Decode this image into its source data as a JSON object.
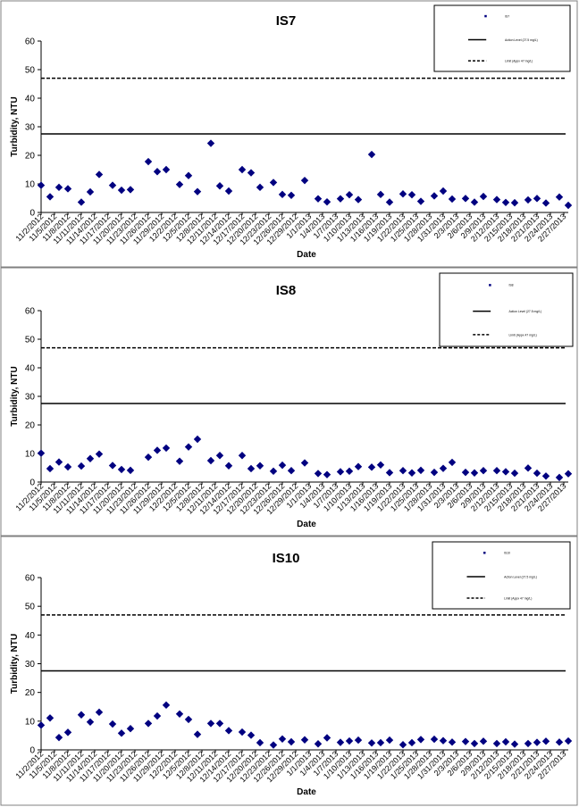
{
  "chart_data": [
    {
      "type": "scatter",
      "title": "IS7",
      "xlabel": "Date",
      "ylabel": "Turbidity, NTU",
      "ylim": [
        0,
        60
      ],
      "yticks": [
        "0",
        "10",
        "20",
        "30",
        "40",
        "50",
        "60"
      ],
      "xticks": [
        "11/2/2012",
        "11/5/2012",
        "11/8/2012",
        "11/11/2012",
        "11/14/2012",
        "11/17/2012",
        "11/20/2012",
        "11/23/2012",
        "11/26/2012",
        "11/29/2012",
        "12/2/2012",
        "12/5/2012",
        "12/8/2012",
        "12/11/2012",
        "12/14/2012",
        "12/17/2012",
        "12/20/2012",
        "12/23/2012",
        "12/26/2012",
        "12/29/2012",
        "1/1/2013",
        "1/4/2013",
        "1/7/2013",
        "1/10/2013",
        "1/13/2013",
        "1/16/2013",
        "1/19/2013",
        "1/22/2013",
        "1/25/2013",
        "1/28/2013",
        "1/31/2013",
        "2/3/2013",
        "2/6/2013",
        "2/9/2013",
        "2/12/2013",
        "2/15/2013",
        "2/18/2013",
        "2/21/2013",
        "2/24/2013",
        "2/27/2013"
      ],
      "reference_lines": [
        27.5,
        47
      ],
      "legend_placement": "top-right",
      "legend_entries": [
        "IS7",
        "Action Level (27.5 mg/L)",
        "Limit (Appx 47 mg/L)"
      ],
      "grid": false,
      "points": [
        {
          "x": "11/2/2012",
          "y": 9.5
        },
        {
          "x": "11/4/2012",
          "y": 5.5
        },
        {
          "x": "11/6/2012",
          "y": 8.8
        },
        {
          "x": "11/8/2012",
          "y": 8.3
        },
        {
          "x": "11/11/2012",
          "y": 3.6
        },
        {
          "x": "11/13/2012",
          "y": 7.2
        },
        {
          "x": "11/15/2012",
          "y": 13.3
        },
        {
          "x": "11/18/2012",
          "y": 9.5
        },
        {
          "x": "11/20/2012",
          "y": 7.8
        },
        {
          "x": "11/22/2012",
          "y": 8.0
        },
        {
          "x": "11/26/2012",
          "y": 17.8
        },
        {
          "x": "11/28/2012",
          "y": 14.3
        },
        {
          "x": "11/30/2012",
          "y": 15.0
        },
        {
          "x": "12/3/2012",
          "y": 9.8
        },
        {
          "x": "12/5/2012",
          "y": 12.9
        },
        {
          "x": "12/7/2012",
          "y": 7.3
        },
        {
          "x": "12/10/2012",
          "y": 24.2
        },
        {
          "x": "12/12/2012",
          "y": 9.3
        },
        {
          "x": "12/14/2012",
          "y": 7.5
        },
        {
          "x": "12/17/2012",
          "y": 15.0
        },
        {
          "x": "12/19/2012",
          "y": 13.9
        },
        {
          "x": "12/21/2012",
          "y": 8.8
        },
        {
          "x": "12/24/2012",
          "y": 10.5
        },
        {
          "x": "12/26/2012",
          "y": 6.3
        },
        {
          "x": "12/28/2012",
          "y": 6.0
        },
        {
          "x": "12/31/2012",
          "y": 11.2
        },
        {
          "x": "1/3/2013",
          "y": 4.8
        },
        {
          "x": "1/5/2013",
          "y": 3.7
        },
        {
          "x": "1/8/2013",
          "y": 4.8
        },
        {
          "x": "1/10/2013",
          "y": 6.2
        },
        {
          "x": "1/12/2013",
          "y": 4.5
        },
        {
          "x": "1/15/2013",
          "y": 20.3
        },
        {
          "x": "1/17/2013",
          "y": 6.3
        },
        {
          "x": "1/19/2013",
          "y": 3.6
        },
        {
          "x": "1/22/2013",
          "y": 6.5
        },
        {
          "x": "1/24/2013",
          "y": 6.2
        },
        {
          "x": "1/26/2013",
          "y": 3.9
        },
        {
          "x": "1/29/2013",
          "y": 5.8
        },
        {
          "x": "1/31/2013",
          "y": 7.5
        },
        {
          "x": "2/2/2013",
          "y": 4.7
        },
        {
          "x": "2/5/2013",
          "y": 4.9
        },
        {
          "x": "2/7/2013",
          "y": 3.6
        },
        {
          "x": "2/9/2013",
          "y": 5.6
        },
        {
          "x": "2/12/2013",
          "y": 4.5
        },
        {
          "x": "2/14/2013",
          "y": 3.5
        },
        {
          "x": "2/16/2013",
          "y": 3.4
        },
        {
          "x": "2/19/2013",
          "y": 4.4
        },
        {
          "x": "2/21/2013",
          "y": 4.9
        },
        {
          "x": "2/23/2013",
          "y": 3.3
        },
        {
          "x": "2/26/2013",
          "y": 5.4
        },
        {
          "x": "2/28/2013",
          "y": 2.5
        }
      ]
    },
    {
      "type": "scatter",
      "title": "IS8",
      "xlabel": "Date",
      "ylabel": "Turbidity, NTU",
      "ylim": [
        0,
        60
      ],
      "yticks": [
        "0",
        "10",
        "20",
        "30",
        "40",
        "50",
        "60"
      ],
      "xticks": [
        "11/2/2012",
        "11/5/2012",
        "11/8/2012",
        "11/11/2012",
        "11/14/2012",
        "11/17/2012",
        "11/20/2012",
        "11/23/2012",
        "11/26/2012",
        "11/29/2012",
        "12/2/2012",
        "12/5/2012",
        "12/8/2012",
        "12/11/2012",
        "12/14/2012",
        "12/17/2012",
        "12/20/2012",
        "12/23/2012",
        "12/26/2012",
        "12/29/2012",
        "1/1/2013",
        "1/4/2013",
        "1/7/2013",
        "1/10/2013",
        "1/13/2013",
        "1/16/2013",
        "1/19/2013",
        "1/22/2013",
        "1/25/2013",
        "1/28/2013",
        "1/31/2013",
        "2/3/2013",
        "2/6/2013",
        "2/9/2013",
        "2/12/2013",
        "2/15/2013",
        "2/18/2013",
        "2/21/2013",
        "2/24/2013",
        "2/27/2013"
      ],
      "reference_lines": [
        27.5,
        47
      ],
      "legend_placement": "top-right",
      "legend_entries": [
        "IS8",
        "Action Level (27.5 mg/L)",
        "Limit (Appx 47 mg/L)"
      ],
      "grid": false,
      "points": [
        {
          "x": "11/2/2012",
          "y": 10.1
        },
        {
          "x": "11/4/2012",
          "y": 4.7
        },
        {
          "x": "11/6/2012",
          "y": 7.0
        },
        {
          "x": "11/8/2012",
          "y": 5.3
        },
        {
          "x": "11/11/2012",
          "y": 5.6
        },
        {
          "x": "11/13/2012",
          "y": 8.2
        },
        {
          "x": "11/15/2012",
          "y": 9.8
        },
        {
          "x": "11/18/2012",
          "y": 5.8
        },
        {
          "x": "11/20/2012",
          "y": 4.4
        },
        {
          "x": "11/22/2012",
          "y": 4.1
        },
        {
          "x": "11/26/2012",
          "y": 8.7
        },
        {
          "x": "11/28/2012",
          "y": 11.1
        },
        {
          "x": "11/30/2012",
          "y": 11.9
        },
        {
          "x": "12/3/2012",
          "y": 7.3
        },
        {
          "x": "12/5/2012",
          "y": 12.3
        },
        {
          "x": "12/7/2012",
          "y": 15.0
        },
        {
          "x": "12/10/2012",
          "y": 7.5
        },
        {
          "x": "12/12/2012",
          "y": 9.3
        },
        {
          "x": "12/14/2012",
          "y": 5.7
        },
        {
          "x": "12/17/2012",
          "y": 9.3
        },
        {
          "x": "12/19/2012",
          "y": 4.7
        },
        {
          "x": "12/21/2012",
          "y": 5.7
        },
        {
          "x": "12/24/2012",
          "y": 3.8
        },
        {
          "x": "12/26/2012",
          "y": 5.9
        },
        {
          "x": "12/28/2012",
          "y": 4.0
        },
        {
          "x": "12/31/2012",
          "y": 6.7
        },
        {
          "x": "1/3/2013",
          "y": 3.0
        },
        {
          "x": "1/5/2013",
          "y": 2.6
        },
        {
          "x": "1/8/2013",
          "y": 3.6
        },
        {
          "x": "1/10/2013",
          "y": 3.8
        },
        {
          "x": "1/12/2013",
          "y": 5.4
        },
        {
          "x": "1/15/2013",
          "y": 5.2
        },
        {
          "x": "1/17/2013",
          "y": 6.0
        },
        {
          "x": "1/19/2013",
          "y": 3.3
        },
        {
          "x": "1/22/2013",
          "y": 4.0
        },
        {
          "x": "1/24/2013",
          "y": 3.2
        },
        {
          "x": "1/26/2013",
          "y": 4.1
        },
        {
          "x": "1/29/2013",
          "y": 3.4
        },
        {
          "x": "1/31/2013",
          "y": 4.8
        },
        {
          "x": "2/2/2013",
          "y": 6.9
        },
        {
          "x": "2/5/2013",
          "y": 3.4
        },
        {
          "x": "2/7/2013",
          "y": 3.2
        },
        {
          "x": "2/9/2013",
          "y": 4.0
        },
        {
          "x": "2/12/2013",
          "y": 4.0
        },
        {
          "x": "2/14/2013",
          "y": 3.6
        },
        {
          "x": "2/16/2013",
          "y": 3.1
        },
        {
          "x": "2/19/2013",
          "y": 4.9
        },
        {
          "x": "2/21/2013",
          "y": 3.1
        },
        {
          "x": "2/23/2013",
          "y": 2.1
        },
        {
          "x": "2/26/2013",
          "y": 1.6
        },
        {
          "x": "2/28/2013",
          "y": 2.9
        }
      ]
    },
    {
      "type": "scatter",
      "title": "IS10",
      "xlabel": "Date",
      "ylabel": "Turbidity, NTU",
      "ylim": [
        0,
        60
      ],
      "yticks": [
        "0",
        "10",
        "20",
        "30",
        "40",
        "50",
        "60"
      ],
      "xticks": [
        "11/2/2012",
        "11/5/2012",
        "11/8/2012",
        "11/11/2012",
        "11/14/2012",
        "11/17/2012",
        "11/20/2012",
        "11/23/2012",
        "11/26/2012",
        "11/29/2012",
        "12/2/2012",
        "12/5/2012",
        "12/8/2012",
        "12/11/2012",
        "12/14/2012",
        "12/17/2012",
        "12/20/2012",
        "12/23/2012",
        "12/26/2012",
        "12/29/2012",
        "1/1/2013",
        "1/4/2013",
        "1/7/2013",
        "1/10/2013",
        "1/13/2013",
        "1/16/2013",
        "1/19/2013",
        "1/22/2013",
        "1/25/2013",
        "1/28/2013",
        "1/31/2013",
        "2/3/2013",
        "2/6/2013",
        "2/9/2013",
        "2/12/2013",
        "2/15/2013",
        "2/18/2013",
        "2/21/2013",
        "2/24/2013",
        "2/27/2013"
      ],
      "reference_lines": [
        27.5,
        47
      ],
      "legend_placement": "top-right",
      "legend_entries": [
        "IS10",
        "Action Level (27.5 mg/L)",
        "Limit (Appx 47 mg/L)"
      ],
      "grid": false,
      "points": [
        {
          "x": "11/2/2012",
          "y": 8.6
        },
        {
          "x": "11/4/2012",
          "y": 11.1
        },
        {
          "x": "11/6/2012",
          "y": 4.3
        },
        {
          "x": "11/8/2012",
          "y": 6.1
        },
        {
          "x": "11/11/2012",
          "y": 12.2
        },
        {
          "x": "11/13/2012",
          "y": 9.7
        },
        {
          "x": "11/15/2012",
          "y": 13.1
        },
        {
          "x": "11/18/2012",
          "y": 9.0
        },
        {
          "x": "11/20/2012",
          "y": 5.8
        },
        {
          "x": "11/22/2012",
          "y": 7.4
        },
        {
          "x": "11/26/2012",
          "y": 9.2
        },
        {
          "x": "11/28/2012",
          "y": 11.8
        },
        {
          "x": "11/30/2012",
          "y": 15.6
        },
        {
          "x": "12/3/2012",
          "y": 12.5
        },
        {
          "x": "12/5/2012",
          "y": 10.6
        },
        {
          "x": "12/7/2012",
          "y": 5.4
        },
        {
          "x": "12/10/2012",
          "y": 9.2
        },
        {
          "x": "12/12/2012",
          "y": 9.2
        },
        {
          "x": "12/14/2012",
          "y": 6.7
        },
        {
          "x": "12/17/2012",
          "y": 6.2
        },
        {
          "x": "12/19/2012",
          "y": 5.1
        },
        {
          "x": "12/21/2012",
          "y": 2.5
        },
        {
          "x": "12/24/2012",
          "y": 1.7
        },
        {
          "x": "12/26/2012",
          "y": 3.8
        },
        {
          "x": "12/28/2012",
          "y": 2.8
        },
        {
          "x": "12/31/2012",
          "y": 3.5
        },
        {
          "x": "1/3/2013",
          "y": 2.1
        },
        {
          "x": "1/5/2013",
          "y": 4.2
        },
        {
          "x": "1/8/2013",
          "y": 2.6
        },
        {
          "x": "1/10/2013",
          "y": 3.1
        },
        {
          "x": "1/12/2013",
          "y": 3.4
        },
        {
          "x": "1/15/2013",
          "y": 2.4
        },
        {
          "x": "1/17/2013",
          "y": 2.5
        },
        {
          "x": "1/19/2013",
          "y": 3.4
        },
        {
          "x": "1/22/2013",
          "y": 1.8
        },
        {
          "x": "1/24/2013",
          "y": 2.5
        },
        {
          "x": "1/26/2013",
          "y": 3.6
        },
        {
          "x": "1/29/2013",
          "y": 3.7
        },
        {
          "x": "1/31/2013",
          "y": 3.2
        },
        {
          "x": "2/2/2013",
          "y": 2.7
        },
        {
          "x": "2/5/2013",
          "y": 2.9
        },
        {
          "x": "2/7/2013",
          "y": 2.2
        },
        {
          "x": "2/9/2013",
          "y": 3.0
        },
        {
          "x": "2/12/2013",
          "y": 2.2
        },
        {
          "x": "2/14/2013",
          "y": 2.8
        },
        {
          "x": "2/16/2013",
          "y": 2.0
        },
        {
          "x": "2/19/2013",
          "y": 2.2
        },
        {
          "x": "2/21/2013",
          "y": 2.6
        },
        {
          "x": "2/23/2013",
          "y": 3.0
        },
        {
          "x": "2/26/2013",
          "y": 2.7
        },
        {
          "x": "2/28/2013",
          "y": 3.1
        }
      ]
    }
  ],
  "style": {
    "marker_color": "#000080",
    "line_color": "#000000",
    "panel_border_color": "#808080"
  }
}
